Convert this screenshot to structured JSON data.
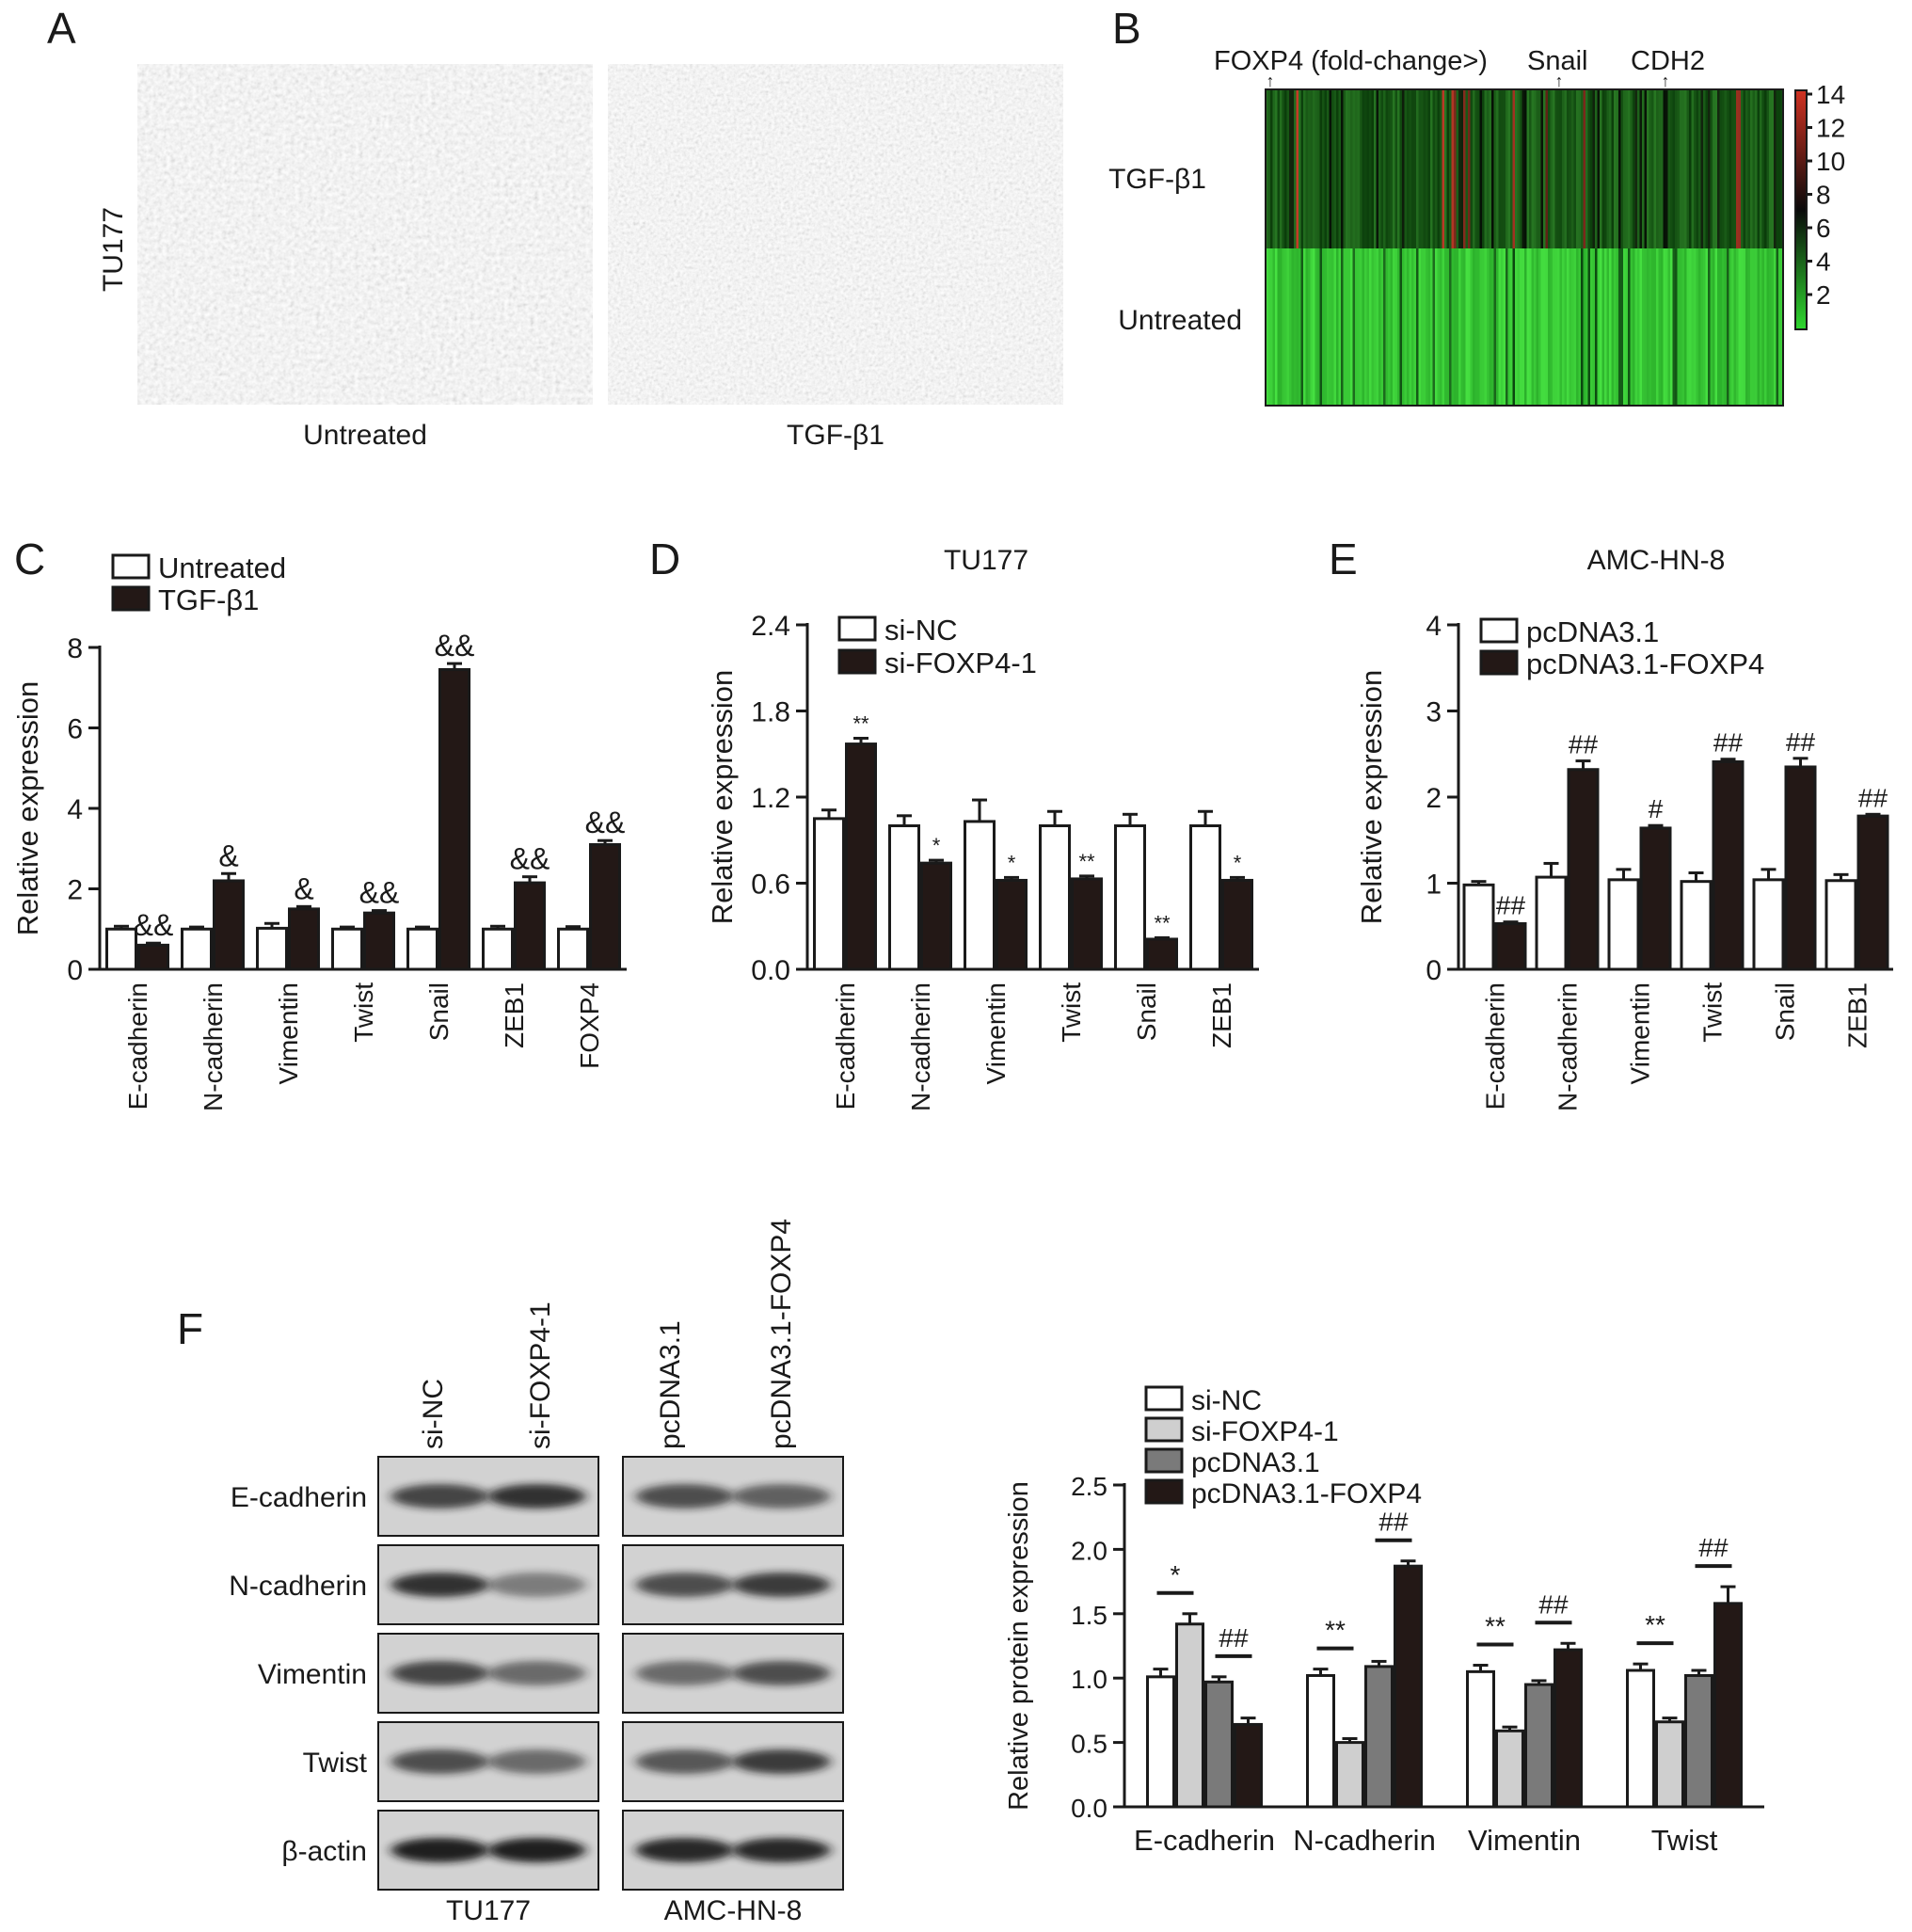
{
  "colors": {
    "black": "#1a1a1a",
    "white": "#ffffff",
    "light_gray": "#cfcfcf",
    "mid_gray": "#7a7a7a",
    "dark": "#231816",
    "heat_green": "#2fd82f",
    "heat_red": "#d03222"
  },
  "panels": {
    "A": {
      "label": "A",
      "row_label": "TU177",
      "images": [
        "Untreated",
        "TGF-β1"
      ]
    },
    "B": {
      "label": "B",
      "gene_marks": [
        "FOXP4 (fold-change>)",
        "Snail",
        "CDH2"
      ],
      "rows": [
        "TGF-β1",
        "Untreated"
      ],
      "colorbar_ticks": [
        "14",
        "12",
        "10",
        "8",
        "6",
        "4",
        "2"
      ]
    },
    "F_blot": {
      "label": "F",
      "lanes": [
        "si-NC",
        "si-FOXP4-1",
        "pcDNA3.1",
        "pcDNA3.1-FOXP4"
      ],
      "proteins": [
        "E-cadherin",
        "N-cadherin",
        "Vimentin",
        "Twist",
        "β-actin"
      ],
      "groups": [
        "TU177",
        "AMC-HN-8"
      ]
    }
  },
  "chart_data": [
    {
      "panel": "C",
      "type": "bar",
      "title": "",
      "ylabel": "Relative expression",
      "ylim": [
        0,
        8
      ],
      "yticks": [
        "0",
        "2",
        "4",
        "6",
        "8"
      ],
      "categories": [
        "E-cadherin",
        "N-cadherin",
        "Vimentin",
        "Twist",
        "Snail",
        "ZEB1",
        "FOXP4"
      ],
      "series": [
        {
          "name": "Untreated",
          "values": [
            1.0,
            1.0,
            1.02,
            1.0,
            1.0,
            1.0,
            1.0
          ],
          "errors": [
            0.07,
            0.05,
            0.12,
            0.05,
            0.05,
            0.07,
            0.06
          ]
        },
        {
          "name": "TGF-β1",
          "values": [
            0.6,
            2.2,
            1.5,
            1.4,
            7.45,
            2.15,
            3.1
          ],
          "errors": [
            0.05,
            0.18,
            0.06,
            0.06,
            0.15,
            0.15,
            0.1
          ]
        }
      ],
      "annotations": [
        "&&",
        "&",
        "&",
        "&&",
        "&&",
        "&&",
        "&&"
      ],
      "legend": "top-left",
      "grid": false
    },
    {
      "panel": "D",
      "type": "bar",
      "title": "TU177",
      "ylabel": "Relative expression",
      "ylim": [
        0,
        2.4
      ],
      "yticks": [
        "0.0",
        "0.6",
        "1.2",
        "1.8",
        "2.4"
      ],
      "categories": [
        "E-cadherin",
        "N-cadherin",
        "Vimentin",
        "Twist",
        "Snail",
        "ZEB1"
      ],
      "series": [
        {
          "name": "si-NC",
          "values": [
            1.05,
            1.0,
            1.03,
            1.0,
            1.0,
            1.0
          ],
          "errors": [
            0.06,
            0.07,
            0.15,
            0.1,
            0.08,
            0.1
          ]
        },
        {
          "name": "si-FOXP4-1",
          "values": [
            1.57,
            0.74,
            0.62,
            0.63,
            0.21,
            0.62
          ],
          "errors": [
            0.04,
            0.02,
            0.02,
            0.02,
            0.01,
            0.02
          ]
        }
      ],
      "annotations": [
        "**",
        "*",
        "*",
        "**",
        "**",
        "*"
      ],
      "legend": "top-left",
      "grid": false
    },
    {
      "panel": "E",
      "type": "bar",
      "title": "AMC-HN-8",
      "ylabel": "Relative expression",
      "ylim": [
        0,
        4
      ],
      "yticks": [
        "0",
        "1",
        "2",
        "3",
        "4"
      ],
      "categories": [
        "E-cadherin",
        "N-cadherin",
        "Vimentin",
        "Twist",
        "Snail",
        "ZEB1"
      ],
      "series": [
        {
          "name": "pcDNA3.1",
          "values": [
            0.98,
            1.07,
            1.04,
            1.02,
            1.04,
            1.03
          ],
          "errors": [
            0.04,
            0.16,
            0.12,
            0.1,
            0.12,
            0.07
          ]
        },
        {
          "name": "pcDNA3.1-FOXP4",
          "values": [
            0.53,
            2.32,
            1.64,
            2.41,
            2.35,
            1.78
          ],
          "errors": [
            0.02,
            0.1,
            0.03,
            0.03,
            0.1,
            0.02
          ]
        }
      ],
      "annotations": [
        "##",
        "##",
        "#",
        "##",
        "##",
        "##"
      ],
      "legend": "top-left",
      "grid": false
    },
    {
      "panel": "F",
      "type": "bar",
      "title": "",
      "ylabel": "Relative protein expression",
      "ylim": [
        0,
        2.5
      ],
      "yticks": [
        "0.0",
        "0.5",
        "1.0",
        "1.5",
        "2.0",
        "2.5"
      ],
      "categories": [
        "E-cadherin",
        "N-cadherin",
        "Vimentin",
        "Twist"
      ],
      "series": [
        {
          "name": "si-NC",
          "values": [
            1.01,
            1.02,
            1.05,
            1.06
          ],
          "errors": [
            0.06,
            0.05,
            0.05,
            0.05
          ]
        },
        {
          "name": "si-FOXP4-1",
          "values": [
            1.42,
            0.5,
            0.59,
            0.66
          ],
          "errors": [
            0.08,
            0.03,
            0.03,
            0.03
          ]
        },
        {
          "name": "pcDNA3.1",
          "values": [
            0.97,
            1.09,
            0.95,
            1.02
          ],
          "errors": [
            0.04,
            0.04,
            0.03,
            0.04
          ]
        },
        {
          "name": "pcDNA3.1-FOXP4",
          "values": [
            0.64,
            1.87,
            1.22,
            1.58
          ],
          "errors": [
            0.05,
            0.04,
            0.05,
            0.13
          ]
        }
      ],
      "comparisons": [
        {
          "pair": [
            0,
            1
          ],
          "label": "*"
        },
        {
          "pair": [
            2,
            3
          ],
          "label": "##"
        },
        {
          "pair": [
            0,
            1
          ],
          "label": "**"
        },
        {
          "pair": [
            2,
            3
          ],
          "label": "##"
        },
        {
          "pair": [
            0,
            1
          ],
          "label": "**"
        },
        {
          "pair": [
            2,
            3
          ],
          "label": "##"
        },
        {
          "pair": [
            0,
            1
          ],
          "label": "**"
        },
        {
          "pair": [
            2,
            3
          ],
          "label": "##"
        }
      ],
      "legend": "top-right",
      "grid": false
    }
  ]
}
